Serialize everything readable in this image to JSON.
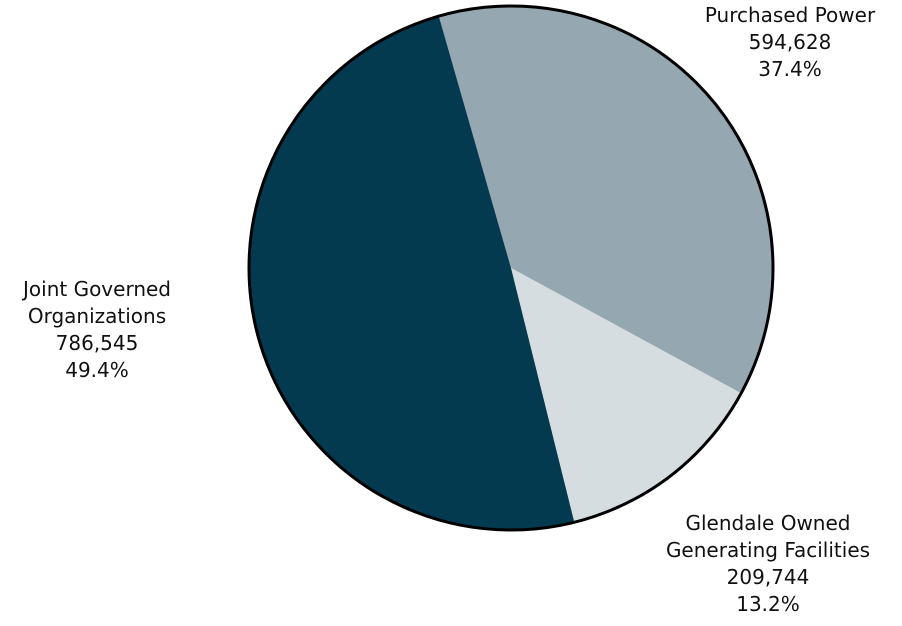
{
  "chart_data": {
    "type": "pie",
    "title": "",
    "slices": [
      {
        "name_lines": [
          "Purchased Power"
        ],
        "value": 594628,
        "value_label": "594,628",
        "percent_label": "37.4%",
        "color": "#95a7b0"
      },
      {
        "name_lines": [
          "Glendale Owned",
          "Generating Facilities"
        ],
        "value": 209744,
        "value_label": "209,744",
        "percent_label": "13.2%",
        "color": "#d5dde1"
      },
      {
        "name_lines": [
          "Joint Governed",
          "Organizations"
        ],
        "value": 786545,
        "value_label": "786,545",
        "percent_label": "49.4%",
        "color": "#033a50"
      }
    ],
    "start_angle_deg": -16,
    "direction": "clockwise",
    "outline_color": "#000000"
  }
}
